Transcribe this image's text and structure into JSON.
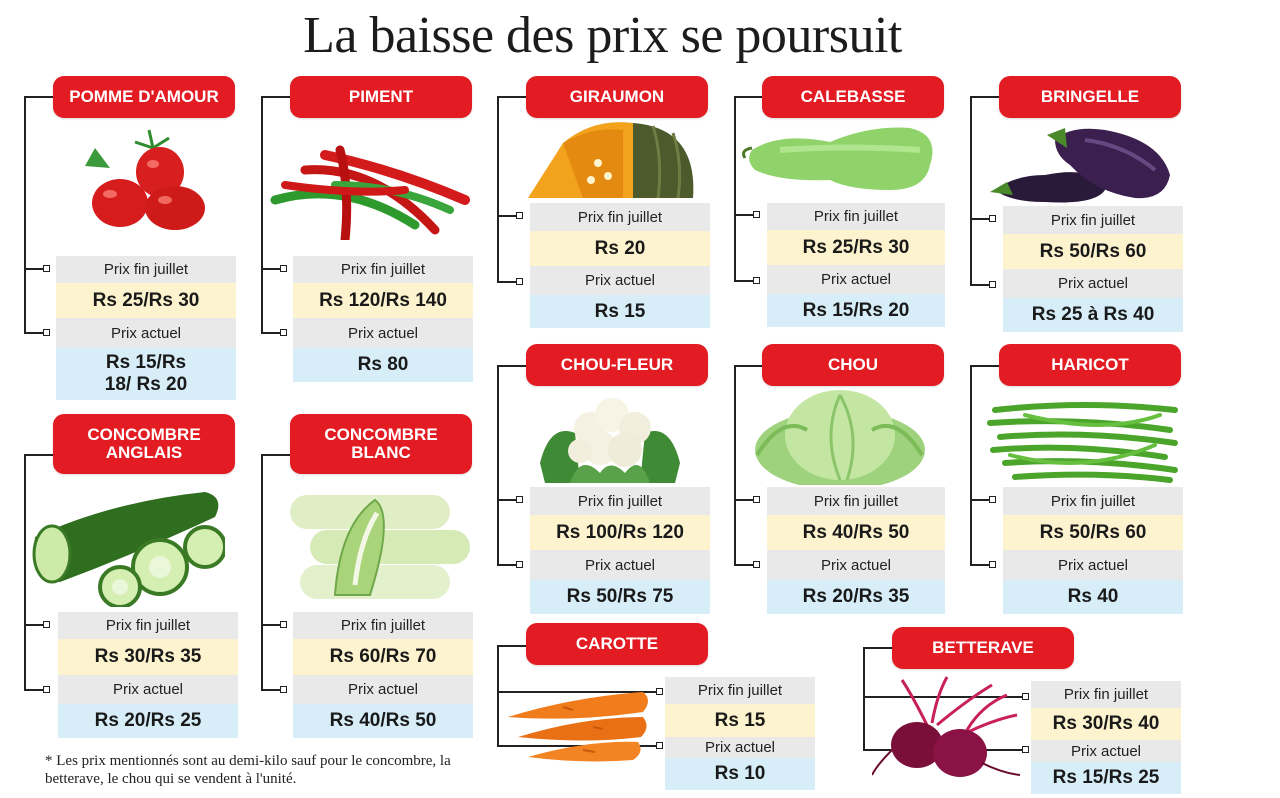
{
  "title": "La baisse des prix se poursuit",
  "label_old": "Prix fin juillet",
  "label_new": "Prix actuel",
  "footnote": "* Les prix mentionnés sont au demi-kilo sauf pour le concombre, la betterave, le chou qui se vendent à l'unité.",
  "colors": {
    "header": "#e31b23",
    "label_bg": "#e9e9e9",
    "old_bg": "#fdf3cf",
    "new_bg": "#d7eef9"
  },
  "items": [
    {
      "name": "POMME D'AMOUR",
      "icon": "tomato-icon",
      "old": "Rs 25/Rs 30",
      "new": "Rs 15/Rs 18/ Rs 20"
    },
    {
      "name": "PIMENT",
      "icon": "chili-icon",
      "old": "Rs 120/Rs 140",
      "new": "Rs 80"
    },
    {
      "name": "GIRAUMON",
      "icon": "pumpkin-icon",
      "old": "Rs 20",
      "new": "Rs 15"
    },
    {
      "name": "CALEBASSE",
      "icon": "gourd-icon",
      "old": "Rs 25/Rs 30",
      "new": "Rs 15/Rs 20"
    },
    {
      "name": "BRINGELLE",
      "icon": "eggplant-icon",
      "old": "Rs 50/Rs 60",
      "new": "Rs 25 à Rs 40"
    },
    {
      "name": "CONCOMBRE ANGLAIS",
      "icon": "cucumber-icon",
      "old": "Rs 30/Rs 35",
      "new": "Rs 20/Rs 25"
    },
    {
      "name": "CONCOMBRE BLANC",
      "icon": "white-cucumber-icon",
      "old": "Rs 60/Rs 70",
      "new": "Rs 40/Rs 50"
    },
    {
      "name": "CHOU-FLEUR",
      "icon": "cauliflower-icon",
      "old": "Rs 100/Rs 120",
      "new": "Rs 50/Rs 75"
    },
    {
      "name": "CHOU",
      "icon": "cabbage-icon",
      "old": "Rs 40/Rs 50",
      "new": "Rs 20/Rs 35"
    },
    {
      "name": "HARICOT",
      "icon": "green-beans-icon",
      "old": "Rs 50/Rs 60",
      "new": "Rs 40"
    },
    {
      "name": "CAROTTE",
      "icon": "carrot-icon",
      "old": "Rs 15",
      "new": "Rs 10"
    },
    {
      "name": "BETTERAVE",
      "icon": "beetroot-icon",
      "old": "Rs 30/Rs 40",
      "new": "Rs 15/Rs 25"
    }
  ]
}
